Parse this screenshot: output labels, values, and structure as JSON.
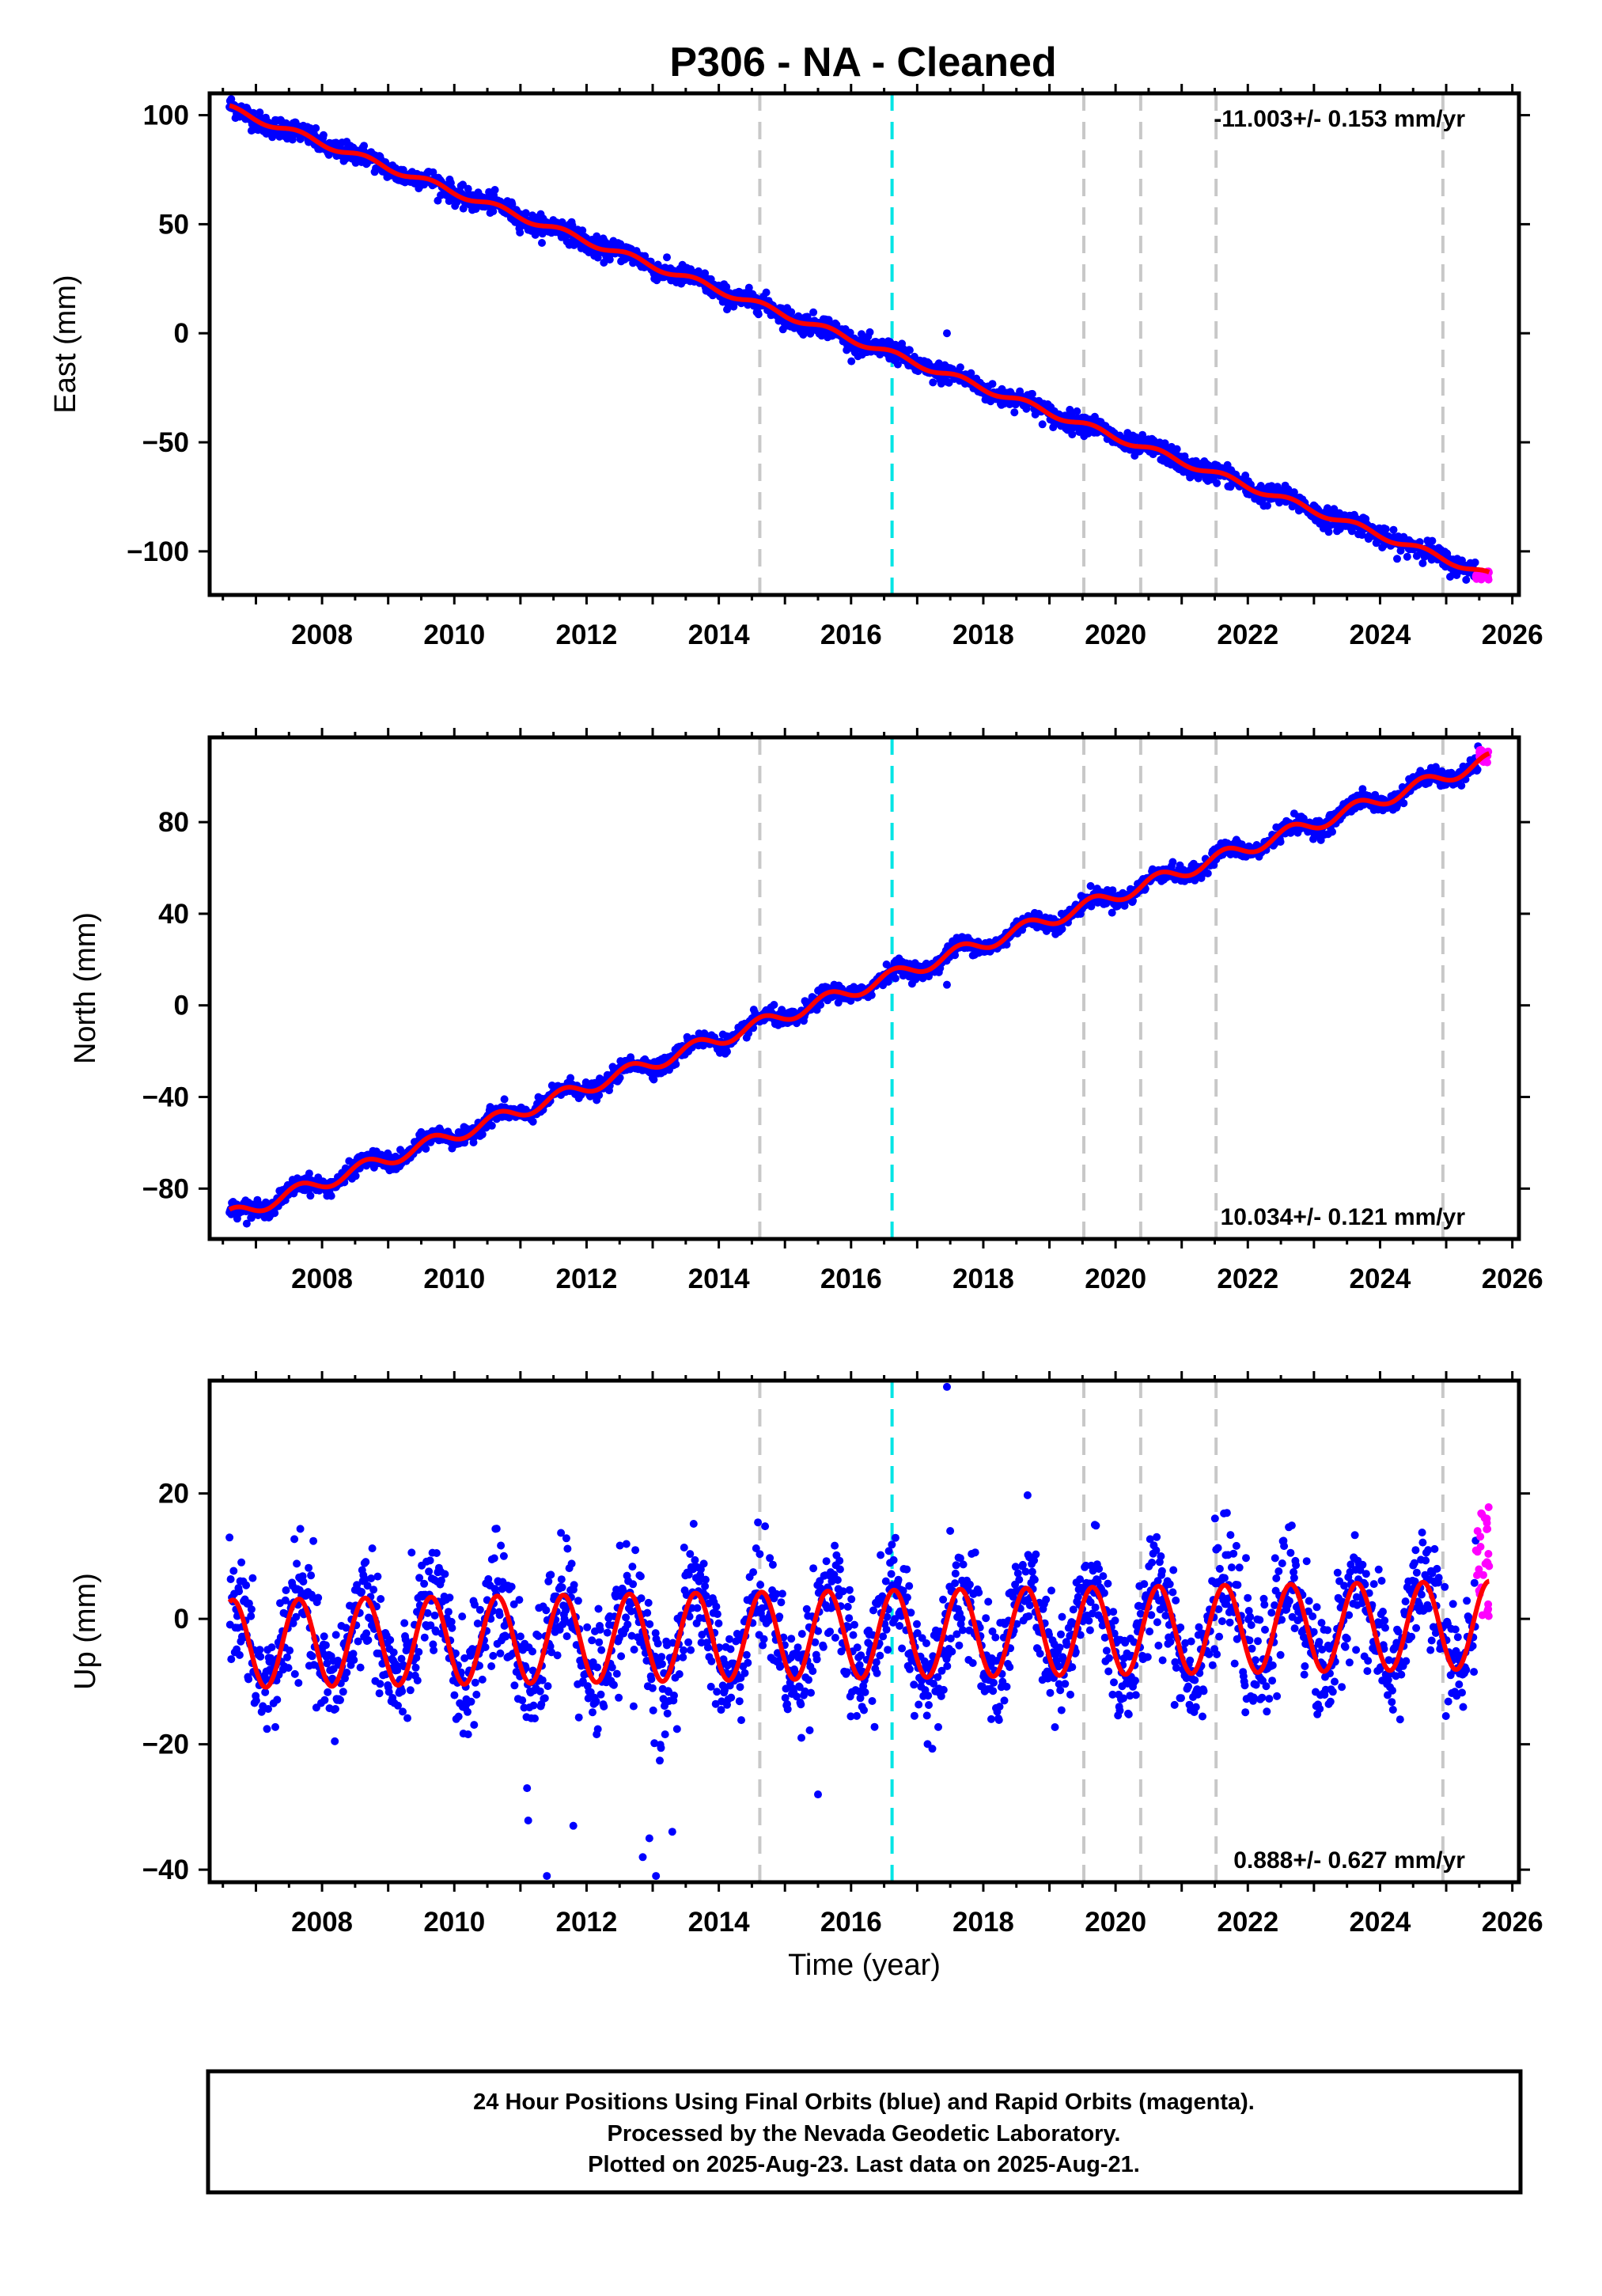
{
  "title": "P306  - NA - Cleaned",
  "colors": {
    "final_orbits": "#0000ff",
    "rapid_orbits": "#ff00ff",
    "model_fit": "#ff0000",
    "equipment_change": "#c8c8c8",
    "earthquake": "#00e5e5",
    "frame": "#000000"
  },
  "chart_data": [
    {
      "type": "scatter",
      "component": "East",
      "ylabel": "East (mm)",
      "xlabel": "",
      "xlim": [
        2006.3,
        2026.1
      ],
      "ylim": [
        -120,
        110
      ],
      "xticks": [
        2008,
        2010,
        2012,
        2014,
        2016,
        2018,
        2020,
        2022,
        2024,
        2026
      ],
      "yticks": [
        100,
        50,
        0,
        -50,
        -100
      ],
      "ytick_labels": [
        "100",
        "50",
        "0",
        "−50",
        "−100"
      ],
      "rate_label": "-11.003+/- 0.153 mm/yr",
      "rate_label_position": "top-right",
      "trend": {
        "start_year": 2006.6,
        "start_value": 103,
        "end_year": 2025.65,
        "end_value": -111
      },
      "seasonal_amplitude": 1.5,
      "scatter_noise": 2.3,
      "outliers": [
        {
          "x": 2017.45,
          "y": 0
        }
      ],
      "rapid_points": {
        "x_from": 2025.45,
        "x_to": 2025.65,
        "y_from": -109,
        "y_to": -113
      },
      "equipment_change_lines": [
        2014.62,
        2019.52,
        2020.38,
        2021.52,
        2024.95
      ],
      "earthquake_lines": [
        2016.62
      ]
    },
    {
      "type": "scatter",
      "component": "North",
      "ylabel": "North (mm)",
      "xlabel": "",
      "xlim": [
        2006.3,
        2026.1
      ],
      "ylim": [
        -102,
        117
      ],
      "xticks": [
        2008,
        2010,
        2012,
        2014,
        2016,
        2018,
        2020,
        2022,
        2024,
        2026
      ],
      "yticks": [
        80,
        40,
        0,
        -40,
        -80
      ],
      "ytick_labels": [
        "80",
        "40",
        "0",
        "−40",
        "−80"
      ],
      "rate_label": "10.034+/- 0.121 mm/yr",
      "rate_label_position": "bottom-right",
      "trend": {
        "start_year": 2006.6,
        "start_value": -92,
        "end_year": 2025.65,
        "end_value": 107
      },
      "seasonal_amplitude": 3.0,
      "scatter_noise": 1.8,
      "outliers": [
        {
          "x": 2017.45,
          "y": 9
        }
      ],
      "rapid_points": {
        "x_from": 2025.5,
        "x_to": 2025.65,
        "y_from": 106,
        "y_to": 112
      },
      "equipment_change_lines": [
        2014.62,
        2019.52,
        2020.38,
        2021.52,
        2024.95
      ],
      "earthquake_lines": [
        2016.62
      ]
    },
    {
      "type": "scatter",
      "component": "Up",
      "ylabel": "Up (mm)",
      "xlabel": "Time (year)",
      "xlim": [
        2006.3,
        2026.1
      ],
      "ylim": [
        -42,
        38
      ],
      "xticks": [
        2008,
        2010,
        2012,
        2014,
        2016,
        2018,
        2020,
        2022,
        2024,
        2026
      ],
      "yticks": [
        20,
        0,
        -20,
        -40
      ],
      "ytick_labels": [
        "20",
        "0",
        "−20",
        "−40"
      ],
      "rate_label": "0.888+/- 0.627 mm/yr",
      "rate_label_position": "bottom-right",
      "trend": {
        "start_year": 2006.6,
        "start_value": -4,
        "end_year": 2025.65,
        "end_value": -1
      },
      "seasonal_amplitude": 7.0,
      "scatter_noise": 4.5,
      "outliers": [
        {
          "x": 2017.45,
          "y": 37
        },
        {
          "x": 2011.4,
          "y": -41
        },
        {
          "x": 2013.05,
          "y": -41
        },
        {
          "x": 2012.85,
          "y": -38
        },
        {
          "x": 2011.8,
          "y": -33
        },
        {
          "x": 2015.5,
          "y": -28
        },
        {
          "x": 2012.95,
          "y": -35
        },
        {
          "x": 2011.1,
          "y": -27
        }
      ],
      "rapid_points": {
        "x_from": 2025.45,
        "x_to": 2025.65,
        "y_from": 0,
        "y_to": 18
      },
      "equipment_change_lines": [
        2014.62,
        2019.52,
        2020.38,
        2021.52,
        2024.95
      ],
      "earthquake_lines": [
        2016.62
      ]
    }
  ],
  "footer": {
    "line1": "24 Hour Positions Using Final Orbits (blue) and Rapid Orbits (magenta).",
    "line2": "Processed by the Nevada Geodetic Laboratory.",
    "line3": "Plotted on 2025-Aug-23. Last data on 2025-Aug-21."
  }
}
